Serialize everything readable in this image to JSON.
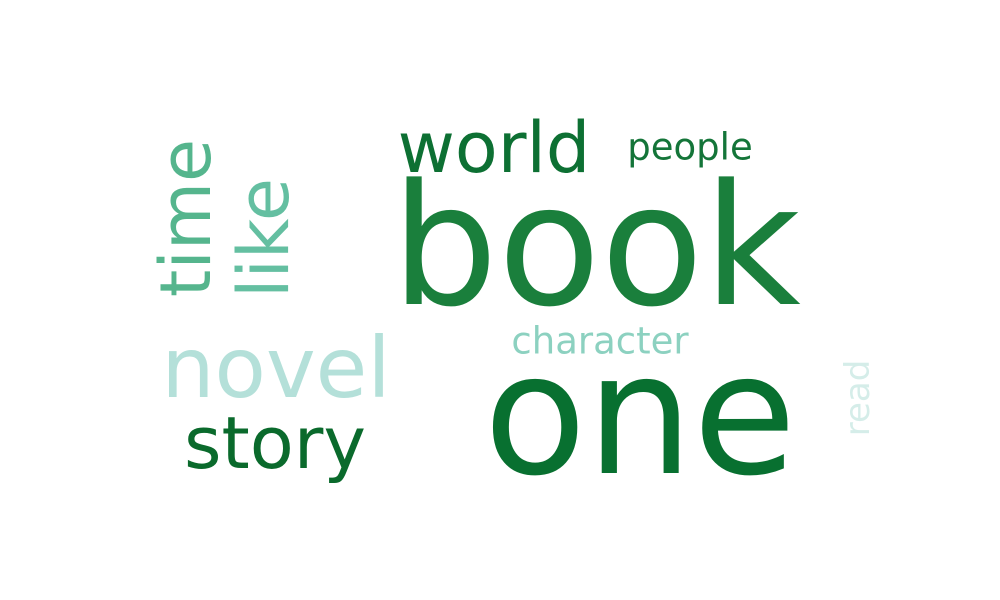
{
  "words": {
    "book": {
      "text": "book",
      "color": "#1a7f3c"
    },
    "one": {
      "text": "one",
      "color": "#087030"
    },
    "world": {
      "text": "world",
      "color": "#0d7033"
    },
    "people": {
      "text": "people",
      "color": "#147539"
    },
    "time": {
      "text": "time",
      "color": "#55b58d"
    },
    "like": {
      "text": "like",
      "color": "#64bfa1"
    },
    "novel": {
      "text": "novel",
      "color": "#b4e0d9"
    },
    "story": {
      "text": "story",
      "color": "#0a6a2c"
    },
    "character": {
      "text": "character",
      "color": "#8cd1c0"
    },
    "read": {
      "text": "read",
      "color": "#d5ede9"
    }
  }
}
